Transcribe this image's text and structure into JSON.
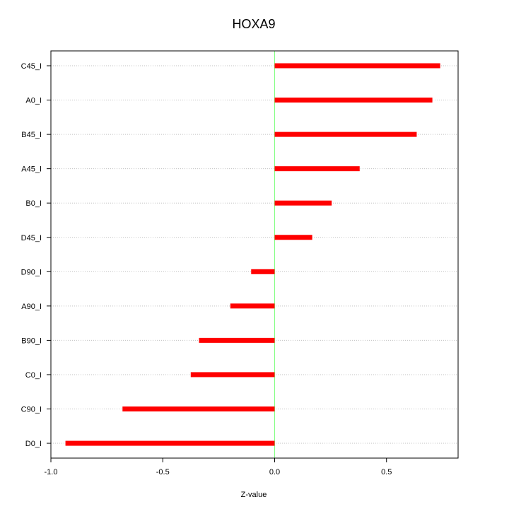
{
  "chart_data": {
    "type": "bar",
    "orientation": "horizontal",
    "title": "HOXA9",
    "xlabel": "Z-value",
    "ylabel": "",
    "xlim": [
      -1.0,
      0.82
    ],
    "x_ticks": [
      -1.0,
      -0.5,
      0.0,
      0.5
    ],
    "x_tick_labels": [
      "-1.0",
      "-0.5",
      "0.0",
      "0.5"
    ],
    "categories": [
      "C45_I",
      "A0_I",
      "B45_I",
      "A45_I",
      "B0_I",
      "D45_I",
      "D90_I",
      "A90_I",
      "B90_I",
      "C0_I",
      "C90_I",
      "D0_I"
    ],
    "values": [
      0.74,
      0.705,
      0.635,
      0.38,
      0.255,
      0.168,
      -0.105,
      -0.198,
      -0.338,
      -0.375,
      -0.68,
      -0.935
    ],
    "grid": "horizontal dotted",
    "zero_line": true,
    "colors": {
      "bar": "#ff0000",
      "zero_line": "#80ff80",
      "grid": "#c0c0c0",
      "axis": "#000000"
    }
  }
}
